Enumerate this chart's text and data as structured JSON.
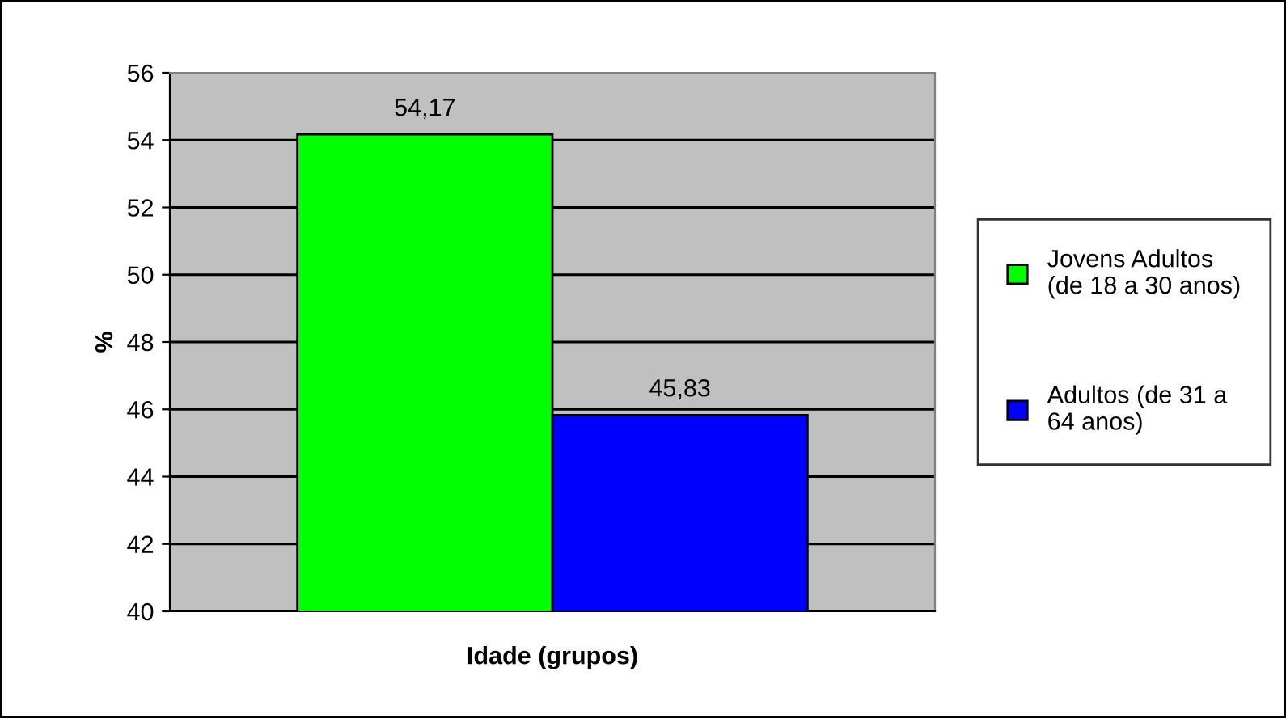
{
  "chart_data": {
    "type": "bar",
    "xlabel": "Idade (grupos)",
    "ylabel": "%",
    "categories": [
      null
    ],
    "series": [
      {
        "name": "Jovens Adultos\n(de 18 a 30 anos)",
        "color": "#00ff00",
        "values": [
          54.17
        ],
        "value_labels": [
          "54,17"
        ]
      },
      {
        "name": "Adultos (de 31 a\n64 anos)",
        "color": "#0000ff",
        "values": [
          45.83
        ],
        "value_labels": [
          "45,83"
        ]
      }
    ],
    "ylim": [
      40,
      56
    ],
    "yticks": [
      40,
      42,
      44,
      46,
      48,
      50,
      52,
      54,
      56
    ],
    "grid": "y",
    "legend": "right"
  }
}
